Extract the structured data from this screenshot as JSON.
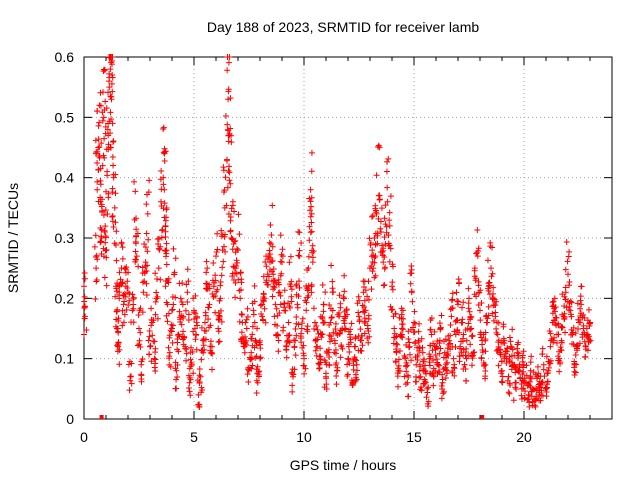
{
  "chart_data": {
    "type": "scatter",
    "title": "Day 188 of 2023, SRMTID for receiver lamb",
    "xlabel": "GPS time / hours",
    "ylabel": "SRMTID / TECUs",
    "xlim": [
      0,
      24
    ],
    "ylim": [
      0,
      0.6
    ],
    "xticks": [
      0,
      5,
      10,
      15,
      20
    ],
    "xtick_labels": [
      "0",
      "5",
      "10",
      "15",
      "20"
    ],
    "yticks": [
      0,
      0.1,
      0.2,
      0.3,
      0.4,
      0.5,
      0.6
    ],
    "ytick_labels": [
      "0",
      "0.1",
      "0.2",
      "0.3",
      "0.4",
      "0.5",
      "0.6"
    ],
    "grid": true,
    "marker": "plus",
    "color": "#ff0000",
    "series": [
      {
        "name": "SRMTID",
        "points": [
          [
            0.0,
            0.22
          ],
          [
            0.0,
            0.14
          ],
          [
            0.05,
            0.17
          ],
          [
            0.55,
            0.25
          ],
          [
            0.6,
            0.38
          ],
          [
            0.65,
            0.45
          ],
          [
            0.7,
            0.52
          ],
          [
            0.75,
            0.36
          ],
          [
            0.8,
            0.3
          ],
          [
            0.85,
            0.42
          ],
          [
            0.9,
            0.5
          ],
          [
            0.95,
            0.31
          ],
          [
            1.0,
            0.28
          ],
          [
            1.05,
            0.41
          ],
          [
            1.1,
            0.47
          ],
          [
            1.15,
            0.55
          ],
          [
            1.2,
            0.58
          ],
          [
            1.25,
            0.53
          ],
          [
            1.3,
            0.49
          ],
          [
            1.35,
            0.4
          ],
          [
            1.4,
            0.35
          ],
          [
            1.45,
            0.22
          ],
          [
            1.5,
            0.15
          ],
          [
            1.55,
            0.12
          ],
          [
            1.6,
            0.2
          ],
          [
            1.7,
            0.25
          ],
          [
            1.8,
            0.19
          ],
          [
            1.9,
            0.22
          ],
          [
            2.0,
            0.21
          ],
          [
            2.1,
            0.07
          ],
          [
            2.2,
            0.18
          ],
          [
            2.3,
            0.33
          ],
          [
            2.4,
            0.27
          ],
          [
            2.5,
            0.15
          ],
          [
            2.6,
            0.09
          ],
          [
            2.7,
            0.21
          ],
          [
            2.8,
            0.26
          ],
          [
            2.9,
            0.34
          ],
          [
            3.0,
            0.12
          ],
          [
            3.1,
            0.16
          ],
          [
            3.2,
            0.1
          ],
          [
            3.3,
            0.2
          ],
          [
            3.4,
            0.25
          ],
          [
            3.5,
            0.36
          ],
          [
            3.6,
            0.4
          ],
          [
            3.65,
            0.38
          ],
          [
            3.7,
            0.32
          ],
          [
            3.75,
            0.28
          ],
          [
            3.8,
            0.19
          ],
          [
            3.9,
            0.11
          ],
          [
            4.0,
            0.15
          ],
          [
            4.1,
            0.24
          ],
          [
            4.2,
            0.08
          ],
          [
            4.3,
            0.14
          ],
          [
            4.4,
            0.2
          ],
          [
            4.5,
            0.17
          ],
          [
            4.6,
            0.12
          ],
          [
            4.7,
            0.21
          ],
          [
            4.8,
            0.06
          ],
          [
            4.9,
            0.09
          ],
          [
            5.0,
            0.18
          ],
          [
            5.1,
            0.14
          ],
          [
            5.2,
            0.04
          ],
          [
            5.3,
            0.07
          ],
          [
            5.4,
            0.13
          ],
          [
            5.5,
            0.16
          ],
          [
            5.6,
            0.25
          ],
          [
            5.7,
            0.19
          ],
          [
            5.8,
            0.11
          ],
          [
            5.9,
            0.22
          ],
          [
            6.0,
            0.27
          ],
          [
            6.1,
            0.15
          ],
          [
            6.2,
            0.2
          ],
          [
            6.3,
            0.28
          ],
          [
            6.4,
            0.35
          ],
          [
            6.5,
            0.43
          ],
          [
            6.55,
            0.53
          ],
          [
            6.6,
            0.47
          ],
          [
            6.65,
            0.39
          ],
          [
            6.7,
            0.3
          ],
          [
            6.8,
            0.29
          ],
          [
            6.9,
            0.25
          ],
          [
            7.0,
            0.28
          ],
          [
            7.1,
            0.2
          ],
          [
            7.2,
            0.16
          ],
          [
            7.3,
            0.12
          ],
          [
            7.4,
            0.15
          ],
          [
            7.5,
            0.08
          ],
          [
            7.6,
            0.11
          ],
          [
            7.7,
            0.18
          ],
          [
            7.8,
            0.13
          ],
          [
            7.9,
            0.06
          ],
          [
            8.0,
            0.1
          ],
          [
            8.1,
            0.17
          ],
          [
            8.2,
            0.2
          ],
          [
            8.3,
            0.23
          ],
          [
            8.4,
            0.27
          ],
          [
            8.5,
            0.29
          ],
          [
            8.6,
            0.24
          ],
          [
            8.7,
            0.19
          ],
          [
            8.8,
            0.14
          ],
          [
            8.9,
            0.21
          ],
          [
            9.0,
            0.26
          ],
          [
            9.1,
            0.18
          ],
          [
            9.2,
            0.12
          ],
          [
            9.3,
            0.16
          ],
          [
            9.4,
            0.22
          ],
          [
            9.5,
            0.07
          ],
          [
            9.6,
            0.13
          ],
          [
            9.7,
            0.19
          ],
          [
            9.8,
            0.27
          ],
          [
            9.9,
            0.15
          ],
          [
            10.0,
            0.1
          ],
          [
            10.1,
            0.18
          ],
          [
            10.2,
            0.25
          ],
          [
            10.3,
            0.38
          ],
          [
            10.35,
            0.34
          ],
          [
            10.4,
            0.26
          ],
          [
            10.5,
            0.16
          ],
          [
            10.6,
            0.12
          ],
          [
            10.7,
            0.09
          ],
          [
            10.8,
            0.14
          ],
          [
            10.9,
            0.19
          ],
          [
            11.0,
            0.07
          ],
          [
            11.1,
            0.11
          ],
          [
            11.2,
            0.16
          ],
          [
            11.3,
            0.21
          ],
          [
            11.4,
            0.13
          ],
          [
            11.5,
            0.08
          ],
          [
            11.6,
            0.17
          ],
          [
            11.7,
            0.12
          ],
          [
            11.8,
            0.2
          ],
          [
            11.9,
            0.15
          ],
          [
            12.0,
            0.1
          ],
          [
            12.1,
            0.14
          ],
          [
            12.2,
            0.06
          ],
          [
            12.3,
            0.12
          ],
          [
            12.4,
            0.09
          ],
          [
            12.5,
            0.17
          ],
          [
            12.6,
            0.13
          ],
          [
            12.7,
            0.21
          ],
          [
            12.8,
            0.18
          ],
          [
            12.9,
            0.15
          ],
          [
            13.0,
            0.25
          ],
          [
            13.1,
            0.28
          ],
          [
            13.2,
            0.3
          ],
          [
            13.3,
            0.34
          ],
          [
            13.4,
            0.37
          ],
          [
            13.5,
            0.31
          ],
          [
            13.6,
            0.26
          ],
          [
            13.7,
            0.29
          ],
          [
            13.8,
            0.36
          ],
          [
            13.9,
            0.32
          ],
          [
            14.0,
            0.22
          ],
          [
            14.1,
            0.15
          ],
          [
            14.2,
            0.11
          ],
          [
            14.3,
            0.08
          ],
          [
            14.4,
            0.14
          ],
          [
            14.5,
            0.18
          ],
          [
            14.6,
            0.1
          ],
          [
            14.7,
            0.06
          ],
          [
            14.8,
            0.12
          ],
          [
            14.9,
            0.21
          ],
          [
            15.0,
            0.16
          ],
          [
            15.1,
            0.09
          ],
          [
            15.2,
            0.13
          ],
          [
            15.3,
            0.07
          ],
          [
            15.4,
            0.11
          ],
          [
            15.5,
            0.08
          ],
          [
            15.6,
            0.05
          ],
          [
            15.7,
            0.1
          ],
          [
            15.8,
            0.14
          ],
          [
            15.9,
            0.07
          ],
          [
            16.0,
            0.12
          ],
          [
            16.1,
            0.09
          ],
          [
            16.2,
            0.15
          ],
          [
            16.3,
            0.06
          ],
          [
            16.4,
            0.11
          ],
          [
            16.5,
            0.08
          ],
          [
            16.6,
            0.13
          ],
          [
            16.7,
            0.17
          ],
          [
            16.8,
            0.1
          ],
          [
            16.9,
            0.14
          ],
          [
            17.0,
            0.19
          ],
          [
            17.1,
            0.12
          ],
          [
            17.2,
            0.16
          ],
          [
            17.3,
            0.09
          ],
          [
            17.4,
            0.13
          ],
          [
            17.5,
            0.2
          ],
          [
            17.6,
            0.15
          ],
          [
            17.7,
            0.11
          ],
          [
            17.8,
            0.23
          ],
          [
            17.9,
            0.27
          ],
          [
            18.0,
            0.18
          ],
          [
            18.1,
            0.13
          ],
          [
            18.2,
            0.09
          ],
          [
            18.3,
            0.16
          ],
          [
            18.4,
            0.22
          ],
          [
            18.5,
            0.25
          ],
          [
            18.6,
            0.2
          ],
          [
            18.7,
            0.17
          ],
          [
            18.8,
            0.14
          ],
          [
            18.9,
            0.11
          ],
          [
            19.0,
            0.08
          ],
          [
            19.1,
            0.13
          ],
          [
            19.2,
            0.1
          ],
          [
            19.3,
            0.07
          ],
          [
            19.4,
            0.12
          ],
          [
            19.5,
            0.09
          ],
          [
            19.6,
            0.06
          ],
          [
            19.7,
            0.11
          ],
          [
            19.8,
            0.08
          ],
          [
            19.9,
            0.05
          ],
          [
            20.0,
            0.09
          ],
          [
            20.1,
            0.06
          ],
          [
            20.2,
            0.04
          ],
          [
            20.3,
            0.08
          ],
          [
            20.4,
            0.05
          ],
          [
            20.5,
            0.03
          ],
          [
            20.6,
            0.07
          ],
          [
            20.7,
            0.04
          ],
          [
            20.8,
            0.06
          ],
          [
            20.9,
            0.09
          ],
          [
            21.0,
            0.05
          ],
          [
            21.1,
            0.08
          ],
          [
            21.2,
            0.12
          ],
          [
            21.3,
            0.16
          ],
          [
            21.4,
            0.2
          ],
          [
            21.5,
            0.14
          ],
          [
            21.6,
            0.1
          ],
          [
            21.7,
            0.13
          ],
          [
            21.8,
            0.17
          ],
          [
            21.9,
            0.21
          ],
          [
            22.0,
            0.24
          ],
          [
            22.1,
            0.18
          ],
          [
            22.2,
            0.14
          ],
          [
            22.3,
            0.09
          ],
          [
            22.4,
            0.12
          ],
          [
            22.5,
            0.16
          ],
          [
            22.6,
            0.19
          ],
          [
            22.7,
            0.15
          ],
          [
            22.8,
            0.12
          ],
          [
            22.9,
            0.14
          ],
          [
            23.0,
            0.16
          ]
        ]
      }
    ],
    "satellite_markers_x": [
      0.8,
      18.1
    ],
    "cluster_seed": 188
  }
}
